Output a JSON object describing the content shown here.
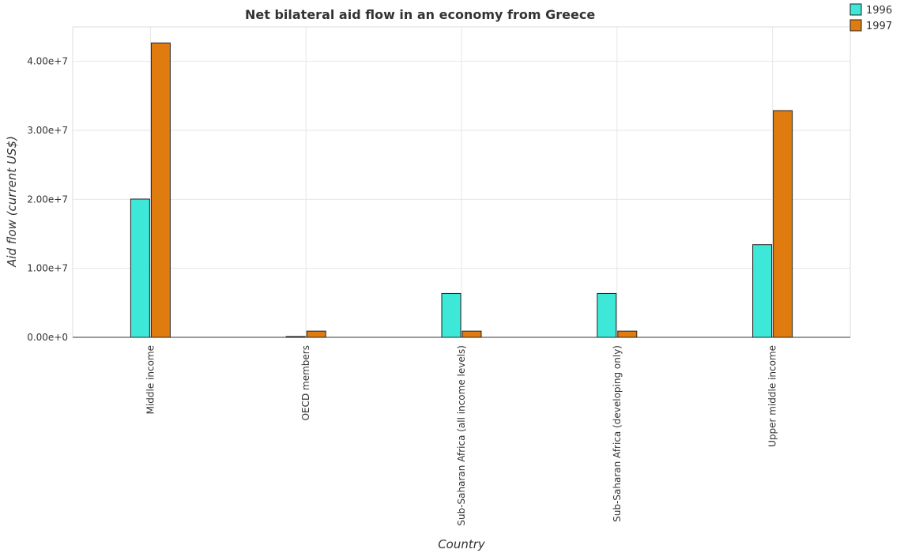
{
  "chart_data": {
    "type": "bar",
    "title": "Net bilateral aid flow in an economy from Greece",
    "xlabel": "Country",
    "ylabel": "Aid flow (current US$)",
    "categories": [
      "Middle income",
      "OECD members",
      "Sub-Saharan Africa (all income levels)",
      "Sub-Saharan Africa (developing only)",
      "Upper middle income"
    ],
    "series": [
      {
        "name": "1996",
        "color": "#3de8d8",
        "values": [
          20040000,
          120000,
          6360000,
          6360000,
          13430000
        ]
      },
      {
        "name": "1997",
        "color": "#e07b10",
        "values": [
          42670000,
          900000,
          900000,
          900000,
          32860000
        ]
      }
    ],
    "ylim": [
      0,
      45000000
    ],
    "yticks": [
      0,
      10000000,
      20000000,
      30000000,
      40000000
    ],
    "ytick_labels": [
      "0.00e+0",
      "1.00e+7",
      "2.00e+7",
      "3.00e+7",
      "4.00e+7"
    ],
    "grid": true,
    "legend_position": "top-right"
  }
}
